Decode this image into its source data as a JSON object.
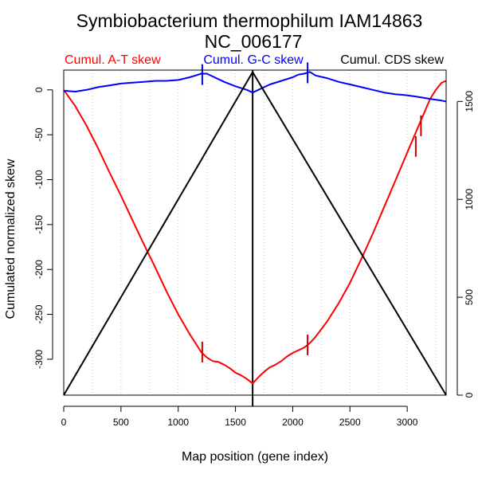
{
  "chart_data": {
    "type": "line",
    "title": "Symbiobacterium thermophilum IAM14863",
    "subtitle": "NC_006177",
    "xlabel": "Map position (gene index)",
    "ylabel": "Cumulated normalized skew",
    "xlim": [
      0,
      3340
    ],
    "ylim": [
      -340,
      22
    ],
    "y2lim": [
      0,
      1660
    ],
    "x_ticks": [
      0,
      500,
      1000,
      1500,
      2000,
      2500,
      3000
    ],
    "y_ticks": [
      0,
      -50,
      -100,
      -150,
      -200,
      -250,
      -300
    ],
    "y2_ticks": [
      0,
      500,
      1000,
      1500
    ],
    "x_tick_labels": [
      "0",
      "500",
      "1000",
      "1500",
      "2000",
      "2500",
      "3000"
    ],
    "y_tick_labels": [
      "0",
      "-50",
      "-100",
      "-150",
      "-200",
      "-250",
      "-300"
    ],
    "y2_tick_labels": [
      "0",
      "500",
      "1000",
      "1500"
    ],
    "grid": "vertical-dotted",
    "grid_x": [
      250,
      500,
      750,
      1000,
      1250,
      1500,
      1750,
      2000,
      2250,
      2500,
      2750,
      3000,
      3250
    ],
    "origin_line_x": 1650,
    "series": [
      {
        "name": "Cumul. A-T skew",
        "color": "#ff0000",
        "axis": "left",
        "x": [
          0,
          100,
          200,
          300,
          400,
          500,
          600,
          700,
          800,
          900,
          1000,
          1100,
          1150,
          1200,
          1250,
          1300,
          1350,
          1400,
          1450,
          1500,
          1550,
          1600,
          1650,
          1700,
          1750,
          1800,
          1850,
          1900,
          1950,
          2000,
          2050,
          2100,
          2150,
          2200,
          2300,
          2400,
          2500,
          2600,
          2700,
          2800,
          2900,
          3000,
          3050,
          3100,
          3150,
          3200,
          3250,
          3300,
          3340
        ],
        "y": [
          0,
          -18,
          -40,
          -65,
          -92,
          -118,
          -145,
          -172,
          -198,
          -225,
          -250,
          -272,
          -282,
          -292,
          -298,
          -302,
          -303,
          -306,
          -310,
          -315,
          -318,
          -322,
          -327,
          -320,
          -314,
          -309,
          -306,
          -302,
          -297,
          -293,
          -290,
          -287,
          -282,
          -275,
          -258,
          -238,
          -215,
          -188,
          -160,
          -130,
          -100,
          -70,
          -55,
          -40,
          -25,
          -10,
          0,
          8,
          10
        ]
      },
      {
        "name": "Cumul. G-C skew",
        "color": "#0000ff",
        "axis": "left",
        "x": [
          0,
          100,
          200,
          300,
          400,
          500,
          600,
          700,
          800,
          900,
          1000,
          1100,
          1150,
          1200,
          1250,
          1300,
          1400,
          1500,
          1600,
          1650,
          1700,
          1800,
          1900,
          2000,
          2050,
          2100,
          2150,
          2200,
          2300,
          2400,
          2500,
          2600,
          2700,
          2800,
          2900,
          3000,
          3100,
          3200,
          3300,
          3340
        ],
        "y": [
          -1,
          -2,
          0,
          3,
          5,
          7,
          8,
          9,
          10,
          10,
          11,
          14,
          16,
          18,
          18,
          15,
          9,
          4,
          0,
          -3,
          0,
          6,
          10,
          14,
          17,
          18,
          20,
          16,
          13,
          9,
          6,
          3,
          0,
          -3,
          -5,
          -6,
          -8,
          -10,
          -12,
          -13
        ]
      },
      {
        "name": "Cumul. CDS skew",
        "color": "#000000",
        "axis": "right",
        "x": [
          0,
          1650,
          3340
        ],
        "y": [
          0,
          1650,
          0
        ]
      }
    ],
    "markers": [
      {
        "series": "Cumul. A-T skew",
        "x": 1210,
        "y": -292,
        "color": "#cc0000"
      },
      {
        "series": "Cumul. A-T skew",
        "x": 2130,
        "y": -284,
        "color": "#cc0000"
      },
      {
        "series": "Cumul. A-T skew",
        "x": 3075,
        "y": -63,
        "color": "#cc0000"
      },
      {
        "series": "Cumul. A-T skew",
        "x": 3120,
        "y": -40,
        "color": "#cc0000"
      },
      {
        "series": "Cumul. G-C skew",
        "x": 1210,
        "y": 17,
        "color": "#0000ff"
      },
      {
        "series": "Cumul. G-C skew",
        "x": 2130,
        "y": 19,
        "color": "#0000ff"
      }
    ]
  }
}
